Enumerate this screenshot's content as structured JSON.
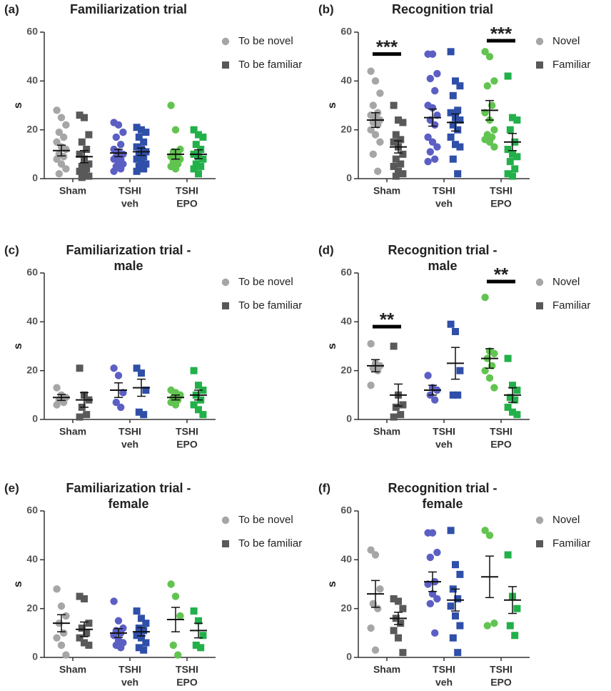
{
  "chart_data": [
    {
      "type": "dotplot",
      "panel": "(a)",
      "title": [
        "Familiarization trial"
      ],
      "ylabel": "s",
      "ylim": [
        0,
        60
      ],
      "yticks": [
        0,
        20,
        40,
        60
      ],
      "categories": [
        [
          "Sham"
        ],
        [
          "TSHI",
          "veh"
        ],
        [
          "TSHI",
          "EPO"
        ]
      ],
      "series": [
        {
          "name": "To be novel",
          "marker": "circle",
          "color": "#a6a6a6",
          "colors": [
            "#a6a6a6",
            "#5b5fc4",
            "#62c450"
          ],
          "values": [
            [
              28,
              25,
              22,
              19,
              17,
              15,
              13,
              12,
              10,
              9,
              8,
              6,
              4,
              2
            ],
            [
              23,
              22,
              19,
              17,
              14,
              12,
              11,
              10,
              9,
              8,
              8,
              7,
              6,
              5,
              4,
              3
            ],
            [
              30,
              20,
              12,
              11,
              10,
              9,
              8,
              8,
              7,
              6,
              5,
              4
            ]
          ],
          "mean": [
            11.5,
            10.5,
            10
          ],
          "sem": [
            2.2,
            1.5,
            2
          ]
        },
        {
          "name": "To be familiar",
          "marker": "square",
          "color": "#595959",
          "colors": [
            "#595959",
            "#2f4fa8",
            "#22b04a"
          ],
          "values": [
            [
              26,
              25,
              18,
              15,
              12,
              10,
              8,
              6,
              5,
              4,
              3,
              2,
              1,
              0.5
            ],
            [
              21,
              20,
              19,
              17,
              15,
              13,
              12,
              11,
              10,
              9,
              8,
              7,
              6,
              5,
              4,
              3
            ],
            [
              20,
              18,
              17,
              14,
              12,
              10,
              9,
              8,
              6,
              5,
              4,
              2
            ]
          ],
          "mean": [
            9,
            11,
            10
          ],
          "sem": [
            2.5,
            1.5,
            1.8
          ]
        }
      ],
      "annotations": []
    },
    {
      "type": "dotplot",
      "panel": "(b)",
      "title": [
        "Recognition trial"
      ],
      "ylabel": "s",
      "ylim": [
        0,
        60
      ],
      "yticks": [
        0,
        20,
        40,
        60
      ],
      "categories": [
        [
          "Sham"
        ],
        [
          "TSHI",
          "veh"
        ],
        [
          "TSHI",
          "EPO"
        ]
      ],
      "series": [
        {
          "name": "Novel",
          "marker": "circle",
          "color": "#a6a6a6",
          "colors": [
            "#a6a6a6",
            "#5b5fc4",
            "#62c450"
          ],
          "values": [
            [
              44,
              40,
              35,
              30,
              27,
              26,
              25,
              24,
              23,
              22,
              20,
              18,
              15,
              10,
              3
            ],
            [
              51,
              51,
              43,
              41,
              36,
              30,
              29,
              26,
              24,
              22,
              17,
              15,
              13,
              11,
              8,
              7
            ],
            [
              52,
              50,
              40,
              38,
              30,
              27,
              24,
              20,
              18,
              17,
              16,
              15,
              13
            ]
          ],
          "mean": [
            24,
            25,
            28
          ],
          "sem": [
            3,
            3.5,
            4
          ]
        },
        {
          "name": "Familiar",
          "marker": "square",
          "color": "#595959",
          "colors": [
            "#595959",
            "#2f4fa8",
            "#22b04a"
          ],
          "values": [
            [
              30,
              24,
              23,
              18,
              16,
              15,
              13,
              10,
              8,
              6,
              5,
              3,
              2,
              1
            ],
            [
              52,
              40,
              38,
              34,
              28,
              27,
              25,
              24,
              22,
              20,
              17,
              14,
              13,
              8,
              2
            ],
            [
              42,
              25,
              24,
              20,
              15,
              12,
              10,
              9,
              7,
              4,
              2,
              1
            ]
          ],
          "mean": [
            13,
            23,
            15
          ],
          "sem": [
            2.5,
            3.5,
            3.5
          ]
        }
      ],
      "annotations": [
        {
          "text": "***",
          "category": 0
        },
        {
          "text": "***",
          "category": 2
        }
      ]
    },
    {
      "type": "dotplot",
      "panel": "(c)",
      "title": [
        "Familiarization trial -",
        "male"
      ],
      "ylabel": "s",
      "ylim": [
        0,
        60
      ],
      "yticks": [
        0,
        20,
        40,
        60
      ],
      "categories": [
        [
          "Sham"
        ],
        [
          "TSHI",
          "veh"
        ],
        [
          "TSHI",
          "EPO"
        ]
      ],
      "series": [
        {
          "name": "To be novel",
          "marker": "circle",
          "color": "#a6a6a6",
          "colors": [
            "#a6a6a6",
            "#5b5fc4",
            "#62c450"
          ],
          "values": [
            [
              13,
              10,
              9,
              8,
              7,
              6
            ],
            [
              21,
              18,
              11,
              7,
              5
            ],
            [
              12,
              11,
              10,
              9,
              8,
              7,
              6
            ]
          ],
          "mean": [
            9,
            12,
            9
          ],
          "sem": [
            1.2,
            3,
            1
          ]
        },
        {
          "name": "To be familiar",
          "marker": "square",
          "color": "#595959",
          "colors": [
            "#595959",
            "#2f4fa8",
            "#22b04a"
          ],
          "values": [
            [
              21,
              10,
              8,
              5,
              2,
              1
            ],
            [
              21,
              19,
              12,
              3,
              2
            ],
            [
              20,
              14,
              12,
              10,
              8,
              6,
              4,
              2
            ]
          ],
          "mean": [
            8,
            13,
            10
          ],
          "sem": [
            3,
            3.5,
            2
          ]
        }
      ],
      "annotations": []
    },
    {
      "type": "dotplot",
      "panel": "(d)",
      "title": [
        "Recognition trial -",
        "male"
      ],
      "ylabel": "s",
      "ylim": [
        0,
        60
      ],
      "yticks": [
        0,
        20,
        40,
        60
      ],
      "categories": [
        [
          "Sham"
        ],
        [
          "TSHI",
          "veh"
        ],
        [
          "TSHI",
          "EPO"
        ]
      ],
      "series": [
        {
          "name": "Novel",
          "marker": "circle",
          "color": "#a6a6a6",
          "colors": [
            "#a6a6a6",
            "#5b5fc4",
            "#62c450"
          ],
          "values": [
            [
              31,
              23,
              22,
              21,
              20,
              14
            ],
            [
              18,
              13,
              12,
              10,
              8
            ],
            [
              50,
              28,
              27,
              25,
              22,
              20,
              17,
              13
            ]
          ],
          "mean": [
            22,
            12,
            25
          ],
          "sem": [
            2.5,
            2,
            4
          ]
        },
        {
          "name": "Familiar",
          "marker": "square",
          "color": "#595959",
          "colors": [
            "#595959",
            "#2f4fa8",
            "#22b04a"
          ],
          "values": [
            [
              30,
              10,
              6,
              5,
              2,
              1
            ],
            [
              39,
              36,
              20,
              10,
              10
            ],
            [
              25,
              14,
              12,
              9,
              8,
              5,
              3,
              2
            ]
          ],
          "mean": [
            10,
            23,
            10
          ],
          "sem": [
            4.5,
            6.5,
            3
          ]
        }
      ],
      "annotations": [
        {
          "text": "**",
          "category": 0
        },
        {
          "text": "**",
          "category": 2
        }
      ]
    },
    {
      "type": "dotplot",
      "panel": "(e)",
      "title": [
        "Familiarization trial -",
        "female"
      ],
      "ylabel": "s",
      "ylim": [
        0,
        60
      ],
      "yticks": [
        0,
        20,
        40,
        60
      ],
      "categories": [
        [
          "Sham"
        ],
        [
          "TSHI",
          "veh"
        ],
        [
          "TSHI",
          "EPO"
        ]
      ],
      "series": [
        {
          "name": "To be novel",
          "marker": "circle",
          "color": "#a6a6a6",
          "colors": [
            "#a6a6a6",
            "#5b5fc4",
            "#62c450"
          ],
          "values": [
            [
              28,
              21,
              17,
              14,
              10,
              8,
              5,
              1
            ],
            [
              23,
              15,
              12,
              11,
              10,
              9,
              7,
              6,
              5,
              4
            ],
            [
              30,
              25,
              17,
              5,
              1
            ]
          ],
          "mean": [
            14,
            10,
            15.5
          ],
          "sem": [
            3.5,
            1.8,
            5
          ]
        },
        {
          "name": "To be familiar",
          "marker": "square",
          "color": "#595959",
          "colors": [
            "#595959",
            "#2f4fa8",
            "#22b04a"
          ],
          "values": [
            [
              25,
              24,
              14,
              12,
              10,
              8,
              6,
              5
            ],
            [
              19,
              16,
              14,
              12,
              11,
              9,
              8,
              6,
              4,
              3
            ],
            [
              19,
              15,
              9,
              5,
              4
            ]
          ],
          "mean": [
            11.5,
            10.5,
            11
          ],
          "sem": [
            3,
            1.7,
            3
          ]
        }
      ],
      "annotations": []
    },
    {
      "type": "dotplot",
      "panel": "(f)",
      "title": [
        "Recognition trial -",
        "female"
      ],
      "ylabel": "s",
      "ylim": [
        0,
        60
      ],
      "yticks": [
        0,
        20,
        40,
        60
      ],
      "categories": [
        [
          "Sham"
        ],
        [
          "TSHI",
          "veh"
        ],
        [
          "TSHI",
          "EPO"
        ]
      ],
      "series": [
        {
          "name": "Novel",
          "marker": "circle",
          "color": "#a6a6a6",
          "colors": [
            "#a6a6a6",
            "#5b5fc4",
            "#62c450"
          ],
          "values": [
            [
              44,
              42,
              28,
              22,
              20,
              12,
              3
            ],
            [
              51,
              51,
              43,
              41,
              31,
              30,
              26,
              24,
              22,
              10
            ],
            [
              52,
              50,
              14,
              13
            ]
          ],
          "mean": [
            26,
            31,
            33
          ],
          "sem": [
            5.5,
            4,
            8.5
          ]
        },
        {
          "name": "Familiar",
          "marker": "square",
          "color": "#595959",
          "colors": [
            "#595959",
            "#2f4fa8",
            "#22b04a"
          ],
          "values": [
            [
              24,
              23,
              20,
              16,
              14,
              11,
              8,
              2
            ],
            [
              52,
              38,
              34,
              28,
              24,
              21,
              17,
              13,
              8,
              2
            ],
            [
              42,
              25,
              20,
              13,
              9
            ]
          ],
          "mean": [
            16,
            23.5,
            23.5
          ],
          "sem": [
            2.5,
            4.5,
            5.5
          ]
        }
      ],
      "annotations": []
    }
  ]
}
